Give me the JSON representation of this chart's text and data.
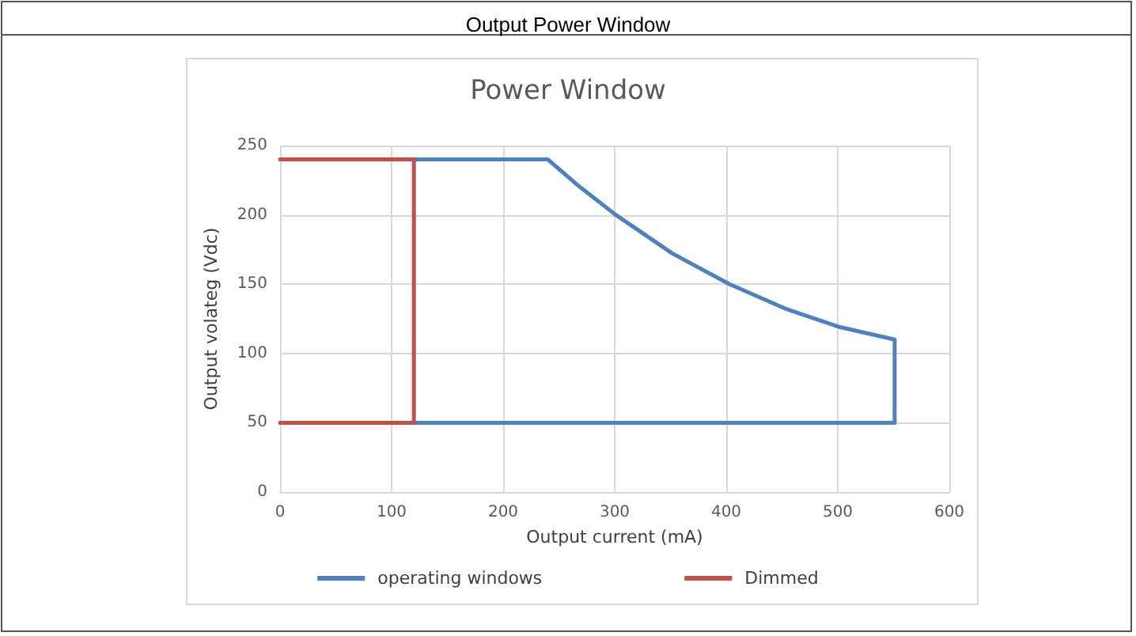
{
  "chart_data": {
    "type": "line",
    "title": "Output Power Window",
    "subtitle": "Power Window",
    "xlabel": "Output current (mA)",
    "ylabel": "Output volateg (Vdc)",
    "series": [
      {
        "name": "operating windows",
        "color": "#4f81bd",
        "x": [
          120,
          240,
          269,
          301,
          352,
          403,
          454,
          502,
          551,
          551,
          120
        ],
        "values": [
          240,
          240,
          220,
          200,
          172,
          150,
          132,
          119,
          110,
          50,
          50
        ]
      },
      {
        "name": "Dimmed",
        "color": "#c0504d",
        "x": [
          0,
          120,
          120,
          0
        ],
        "values": [
          240,
          240,
          50,
          50
        ]
      }
    ],
    "xlim": [
      0,
      600
    ],
    "xticks": [
      0,
      100,
      200,
      300,
      400,
      500,
      600
    ],
    "ylim": [
      0,
      250
    ],
    "yticks": [
      0,
      50,
      100,
      150,
      200,
      250
    ],
    "grid": true,
    "legend": "bottom",
    "marker": "none",
    "line_style": "solid"
  }
}
